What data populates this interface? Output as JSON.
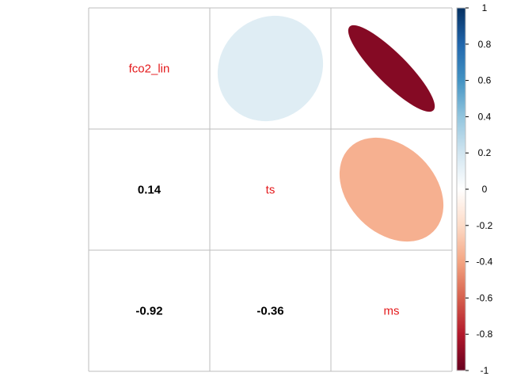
{
  "chart_data": {
    "type": "heatmap",
    "subtype": "correlation-matrix",
    "variables": [
      "fco2_lin",
      "ts",
      "ms"
    ],
    "matrix": [
      [
        1,
        0.14,
        -0.92
      ],
      [
        0.14,
        1,
        -0.36
      ],
      [
        -0.92,
        -0.36,
        1
      ]
    ],
    "upper": "ellipse",
    "lower": "number",
    "diagonal": "label",
    "colorbar": {
      "range": [
        -1,
        1
      ],
      "ticks": [
        "-1",
        "-0.8",
        "-0.6",
        "-0.4",
        "-0.2",
        "0",
        "0.2",
        "0.4",
        "0.6",
        "0.8",
        "1"
      ],
      "position": "right"
    },
    "coefficient_labels": [
      {
        "row": 1,
        "col": 0,
        "text": "0.14"
      },
      {
        "row": 2,
        "col": 0,
        "text": "-0.92"
      },
      {
        "row": 2,
        "col": 1,
        "text": "-0.36"
      }
    ],
    "colors": {
      "label": "#e41a1c",
      "grid": "#bebebe",
      "scale": [
        "#67001f",
        "#b2182b",
        "#d6604d",
        "#f4a582",
        "#fddbc7",
        "#ffffff",
        "#d1e5f0",
        "#92c5de",
        "#4393c3",
        "#2166ac",
        "#053061"
      ]
    }
  }
}
